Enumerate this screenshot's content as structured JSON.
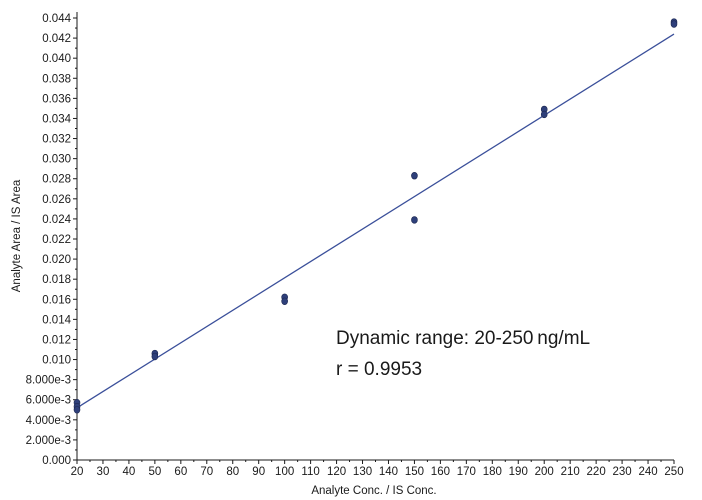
{
  "chart_data": {
    "type": "scatter",
    "xlabel": "Analyte Conc. / IS Conc.",
    "ylabel": "Analyte Area / IS Area",
    "xlim": [
      20,
      250
    ],
    "ylim": [
      0,
      0.044
    ],
    "x_ticks": [
      20,
      30,
      40,
      50,
      60,
      70,
      80,
      90,
      100,
      110,
      120,
      130,
      140,
      150,
      160,
      170,
      180,
      190,
      200,
      210,
      220,
      230,
      240,
      250
    ],
    "x_tick_labels": [
      "20",
      "30",
      "40",
      "50",
      "60",
      "70",
      "80",
      "90",
      "100",
      "110",
      "120",
      "130",
      "140",
      "150",
      "160",
      "170",
      "180",
      "190",
      "200",
      "210",
      "220",
      "230",
      "240",
      "250"
    ],
    "y_ticks": [
      0,
      0.002,
      0.004,
      0.006,
      0.008,
      0.01,
      0.012,
      0.014,
      0.016,
      0.018,
      0.02,
      0.022,
      0.024,
      0.026,
      0.028,
      0.03,
      0.032,
      0.034,
      0.036,
      0.038,
      0.04,
      0.042,
      0.044
    ],
    "y_tick_labels": [
      "0.000",
      "2.000e-3",
      "4.000e-3",
      "6.000e-3",
      "8.000e-3",
      "0.010",
      "0.012",
      "0.014",
      "0.016",
      "0.018",
      "0.020",
      "0.022",
      "0.024",
      "0.026",
      "0.028",
      "0.030",
      "0.032",
      "0.034",
      "0.036",
      "0.038",
      "0.040",
      "0.042",
      "0.044"
    ],
    "grid": false,
    "series": [
      {
        "x": [
          20,
          20,
          20,
          50,
          50,
          100,
          100,
          150,
          150,
          200,
          200,
          250,
          250
        ],
        "y": [
          0.0057,
          0.0053,
          0.005,
          0.0106,
          0.0103,
          0.0162,
          0.0158,
          0.0283,
          0.0239,
          0.0349,
          0.0344,
          0.0436,
          0.0434
        ],
        "color": "#2e3f7a"
      }
    ],
    "fit_line": {
      "x": [
        20,
        250
      ],
      "y": [
        0.0052,
        0.0424
      ],
      "color": "#3a4f9a"
    },
    "annotations": [
      "Dynamic range: 20-250 ng/mL",
      "r = 0.9953"
    ]
  }
}
